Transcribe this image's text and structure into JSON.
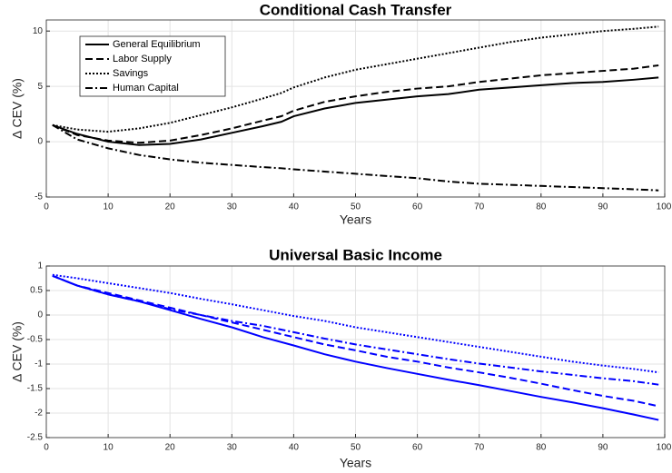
{
  "chart_data": [
    {
      "type": "line",
      "title": "Conditional Cash Transfer",
      "xlabel": "Years",
      "ylabel": "Δ CEV (%)",
      "x": [
        1,
        5,
        10,
        15,
        20,
        25,
        30,
        35,
        38,
        40,
        45,
        50,
        55,
        60,
        65,
        70,
        75,
        80,
        85,
        90,
        95,
        99
      ],
      "xlim": [
        0,
        100
      ],
      "xticks": [
        0,
        10,
        20,
        30,
        40,
        50,
        60,
        70,
        80,
        90,
        100
      ],
      "ylim": [
        -5,
        11
      ],
      "yticks": [
        -5,
        0,
        5,
        10
      ],
      "grid": true,
      "legend": "upper left",
      "series": [
        {
          "name": "General Equilibrium",
          "color": "#000000",
          "style": "solid",
          "values": [
            1.5,
            0.7,
            0.0,
            -0.3,
            -0.2,
            0.2,
            0.8,
            1.4,
            1.8,
            2.3,
            3.0,
            3.5,
            3.8,
            4.1,
            4.3,
            4.7,
            4.9,
            5.1,
            5.3,
            5.4,
            5.6,
            5.8
          ]
        },
        {
          "name": "Labor Supply",
          "color": "#000000",
          "style": "dashed",
          "values": [
            1.5,
            0.6,
            0.1,
            -0.1,
            0.1,
            0.6,
            1.2,
            1.9,
            2.3,
            2.8,
            3.6,
            4.1,
            4.5,
            4.8,
            5.0,
            5.4,
            5.7,
            6.0,
            6.2,
            6.4,
            6.6,
            6.9
          ]
        },
        {
          "name": "Savings",
          "color": "#000000",
          "style": "dotted",
          "values": [
            1.5,
            1.1,
            0.9,
            1.2,
            1.7,
            2.4,
            3.1,
            3.9,
            4.4,
            4.9,
            5.8,
            6.5,
            7.0,
            7.5,
            8.0,
            8.5,
            9.0,
            9.4,
            9.7,
            10.0,
            10.2,
            10.4
          ]
        },
        {
          "name": "Human Capital",
          "color": "#000000",
          "style": "dashdot",
          "values": [
            1.5,
            0.2,
            -0.6,
            -1.2,
            -1.6,
            -1.9,
            -2.1,
            -2.3,
            -2.4,
            -2.5,
            -2.7,
            -2.9,
            -3.1,
            -3.3,
            -3.6,
            -3.8,
            -3.9,
            -4.0,
            -4.1,
            -4.2,
            -4.3,
            -4.4
          ]
        }
      ]
    },
    {
      "type": "line",
      "title": "Universal Basic Income",
      "xlabel": "Years",
      "ylabel": "Δ CEV (%)",
      "x": [
        1,
        5,
        10,
        15,
        20,
        25,
        30,
        35,
        40,
        45,
        50,
        55,
        60,
        65,
        70,
        75,
        80,
        85,
        90,
        95,
        99
      ],
      "xlim": [
        0,
        100
      ],
      "xticks": [
        0,
        10,
        20,
        30,
        40,
        50,
        60,
        70,
        80,
        90,
        100
      ],
      "ylim": [
        -2.5,
        1
      ],
      "yticks": [
        -2.5,
        -2,
        -1.5,
        -1,
        -0.5,
        0,
        0.5,
        1
      ],
      "grid": true,
      "series": [
        {
          "color": "#0000ff",
          "style": "solid",
          "values": [
            0.8,
            0.6,
            0.42,
            0.28,
            0.1,
            -0.08,
            -0.25,
            -0.45,
            -0.62,
            -0.8,
            -0.95,
            -1.08,
            -1.2,
            -1.32,
            -1.43,
            -1.55,
            -1.67,
            -1.78,
            -1.9,
            -2.03,
            -2.14
          ]
        },
        {
          "color": "#0000ff",
          "style": "dashed",
          "values": [
            0.8,
            0.6,
            0.45,
            0.3,
            0.15,
            0.0,
            -0.15,
            -0.3,
            -0.45,
            -0.6,
            -0.72,
            -0.85,
            -0.95,
            -1.07,
            -1.17,
            -1.28,
            -1.4,
            -1.53,
            -1.65,
            -1.75,
            -1.86
          ]
        },
        {
          "color": "#0000ff",
          "style": "dotted",
          "values": [
            0.82,
            0.75,
            0.65,
            0.55,
            0.45,
            0.33,
            0.22,
            0.1,
            -0.02,
            -0.12,
            -0.25,
            -0.35,
            -0.45,
            -0.55,
            -0.65,
            -0.75,
            -0.85,
            -0.95,
            -1.03,
            -1.1,
            -1.17
          ]
        },
        {
          "color": "#0000ff",
          "style": "dashdot",
          "values": [
            0.8,
            0.6,
            0.42,
            0.28,
            0.12,
            0.0,
            -0.12,
            -0.22,
            -0.35,
            -0.48,
            -0.6,
            -0.7,
            -0.8,
            -0.9,
            -0.99,
            -1.07,
            -1.15,
            -1.22,
            -1.29,
            -1.35,
            -1.42
          ]
        }
      ]
    }
  ]
}
